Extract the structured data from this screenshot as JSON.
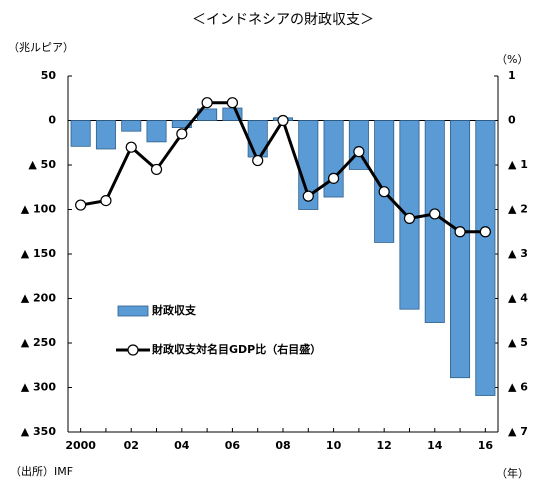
{
  "chart_data": {
    "type": "bar-line",
    "title": "＜インドネシアの財政収支＞",
    "y_label": "（兆ルピア）",
    "y2_label": "（%）",
    "x_label": "（年）",
    "source": "（出所）IMF",
    "categories": [
      "2000",
      null,
      "02",
      null,
      "04",
      null,
      "06",
      null,
      "08",
      null,
      "10",
      null,
      "12",
      null,
      "14",
      null,
      "16"
    ],
    "series": [
      {
        "name": "財政収支",
        "type": "bar",
        "color": "#5b9bd5",
        "values": [
          -29,
          -32,
          -12,
          -24,
          -8,
          13,
          14,
          -41,
          3,
          -100,
          -86,
          -55,
          -137,
          -212,
          -227,
          -289,
          -309
        ]
      },
      {
        "name": "財政収支対名目GDP比（右目盛）",
        "type": "line",
        "axis": "y2",
        "color": "#000000",
        "values": [
          -1.9,
          -1.8,
          -0.6,
          -1.1,
          -0.3,
          0.4,
          0.4,
          -0.9,
          0.0,
          -1.7,
          -1.3,
          -0.7,
          -1.6,
          -2.2,
          -2.1,
          -2.5,
          -2.5
        ]
      }
    ],
    "ylim": [
      -350,
      50
    ],
    "yticks": [
      50,
      0,
      {
        "value": -50,
        "label": "▲ 50"
      },
      {
        "value": -100,
        "label": "▲ 100"
      },
      {
        "value": -150,
        "label": "▲ 150"
      },
      {
        "value": -200,
        "label": "▲ 200"
      },
      {
        "value": -250,
        "label": "▲ 250"
      },
      {
        "value": -300,
        "label": "▲ 300"
      },
      {
        "value": -350,
        "label": "▲ 350"
      }
    ],
    "y2lim": [
      -7,
      1
    ],
    "y2ticks": [
      1,
      0,
      {
        "value": -1,
        "label": "▲ 1"
      },
      {
        "value": -2,
        "label": "▲ 2"
      },
      {
        "value": -3,
        "label": "▲ 3"
      },
      {
        "value": -4,
        "label": "▲ 4"
      },
      {
        "value": -5,
        "label": "▲ 5"
      },
      {
        "value": -6,
        "label": "▲ 6"
      },
      {
        "value": -7,
        "label": "▲ 7"
      }
    ]
  }
}
